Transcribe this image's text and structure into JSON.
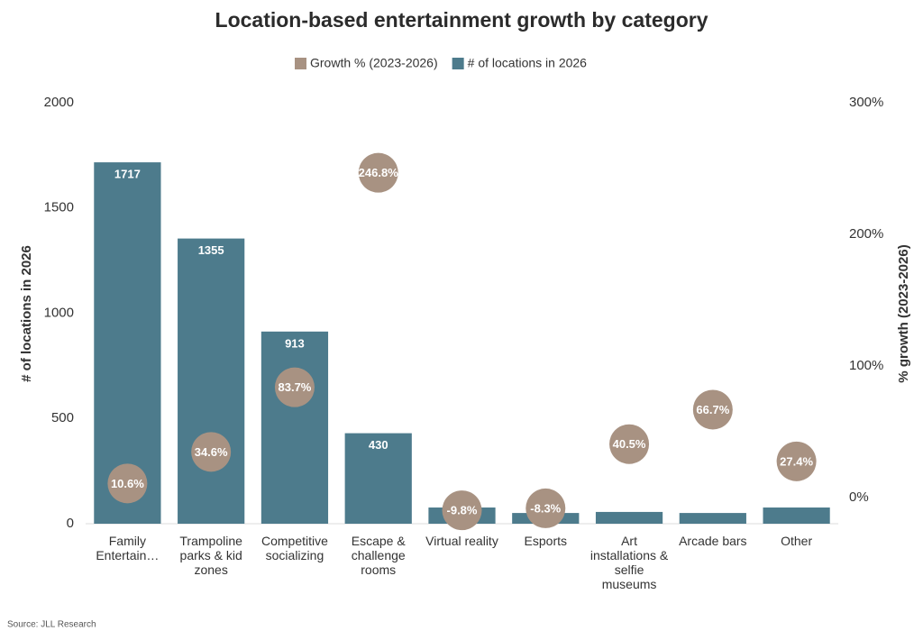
{
  "chart_data": {
    "type": "bar_dot",
    "title": "Location-based entertainment growth by category",
    "source": "Source: JLL Research",
    "y_label": "# of locations in 2026",
    "y2_label": "% growth (2023-2026)",
    "categories": [
      "Family Entertain…",
      "Trampoline parks & kid zones",
      "Competitive socializing",
      "Escape & challenge rooms",
      "Virtual reality",
      "Esports",
      "Art installations & selfie museums",
      "Arcade bars",
      "Other"
    ],
    "series": [
      {
        "name": "Growth % (2023-2026)",
        "color": "#a89282",
        "axis": "y2",
        "values": [
          10.6,
          34.6,
          83.7,
          246.8,
          -9.8,
          -8.3,
          40.5,
          66.7,
          27.4
        ],
        "value_labels": [
          "10.6%",
          "34.6%",
          "83.7%",
          "246.8%",
          "-9.8%",
          "-8.3%",
          "40.5%",
          "66.7%",
          "27.4%"
        ]
      },
      {
        "name": "# of locations in 2026",
        "color": "#4d7b8c",
        "values": [
          1717,
          1355,
          913,
          430,
          77,
          51,
          56,
          51,
          77
        ],
        "value_labels": [
          "1717",
          "1355",
          "913",
          "430",
          null,
          null,
          null,
          null,
          null
        ]
      }
    ],
    "ylim": [
      0,
      2000
    ],
    "yticks": [
      0,
      500,
      1000,
      1500,
      2000
    ],
    "y2lim": [
      -20,
      300
    ],
    "y2ticks": [
      {
        "value": 0,
        "label": "0%"
      },
      {
        "value": 100,
        "label": "100%"
      },
      {
        "value": 200,
        "label": "200%"
      },
      {
        "value": 300,
        "label": "300%"
      }
    ],
    "grid": false
  }
}
